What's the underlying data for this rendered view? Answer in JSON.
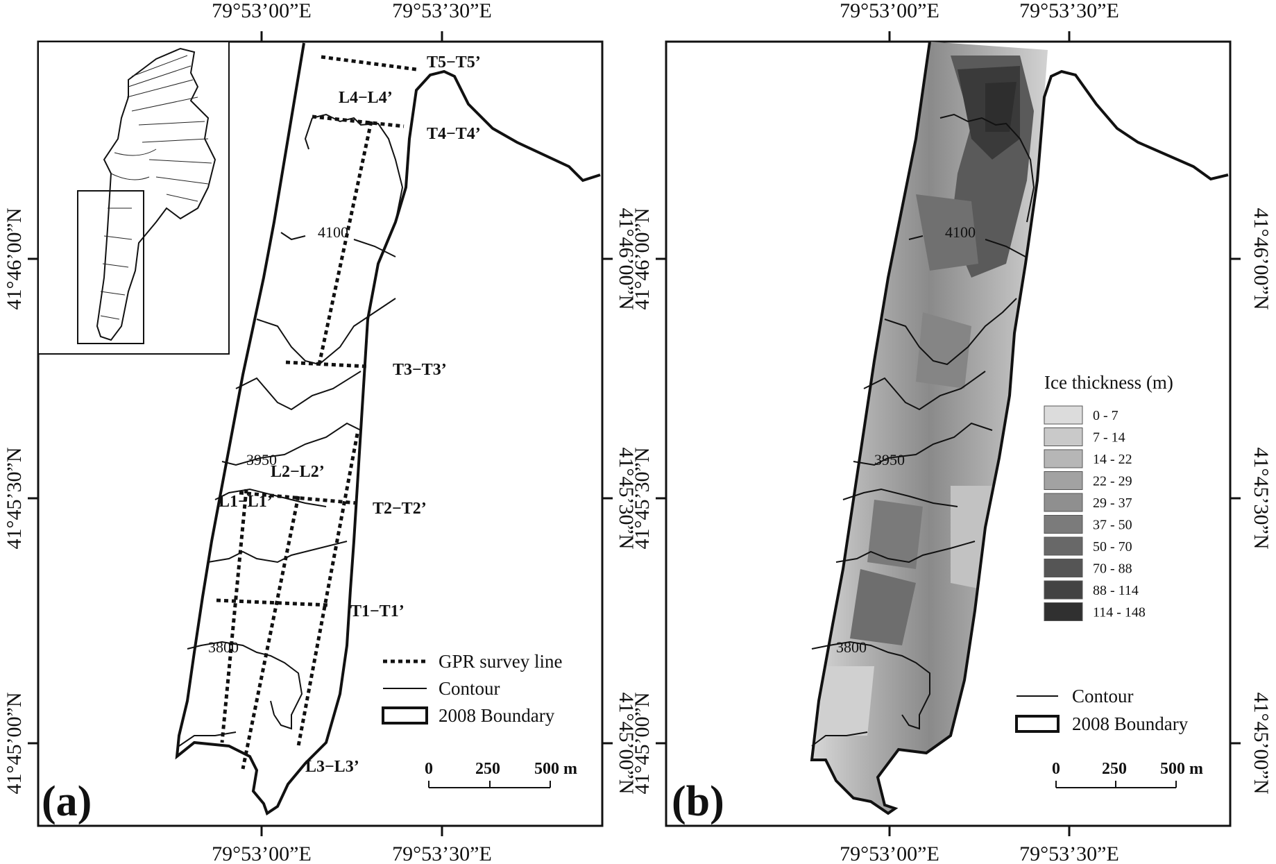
{
  "panels": {
    "a": {
      "letter": "(a)"
    },
    "b": {
      "letter": "(b)"
    }
  },
  "axes": {
    "lon_ticks": [
      "79°53’00”E",
      "79°53’30”E"
    ],
    "lat_ticks": [
      "41°46’00”N",
      "41°45’30”N",
      "41°45’00”N"
    ]
  },
  "survey_lines": {
    "transverse": [
      "T1−T1’",
      "T2−T2’",
      "T3−T3’",
      "T4−T4’",
      "T5−T5’"
    ],
    "longitudinal": [
      "L1−L1’",
      "L2−L2’",
      "L3−L3’",
      "L4−L4’"
    ]
  },
  "contours": [
    "4100",
    "3950",
    "3800"
  ],
  "legend_a": {
    "gpr": "GPR survey line",
    "contour": "Contour",
    "boundary": "2008 Boundary"
  },
  "legend_b": {
    "title": "Ice thickness (m)",
    "classes": [
      {
        "label": "0 - 7",
        "color": "#dcdcdc"
      },
      {
        "label": "7 - 14",
        "color": "#c9c9c9"
      },
      {
        "label": "14 - 22",
        "color": "#b6b6b6"
      },
      {
        "label": "22 - 29",
        "color": "#a2a2a2"
      },
      {
        "label": "29 - 37",
        "color": "#8f8f8f"
      },
      {
        "label": "37 - 50",
        "color": "#7b7b7b"
      },
      {
        "label": "50 - 70",
        "color": "#686868"
      },
      {
        "label": "70 - 88",
        "color": "#555555"
      },
      {
        "label": "88 - 114",
        "color": "#434343"
      },
      {
        "label": "114 - 148",
        "color": "#303030"
      }
    ],
    "contour": "Contour",
    "boundary": "2008 Boundary"
  },
  "scale_bar": {
    "ticks": [
      "0",
      "250",
      "500 m"
    ]
  }
}
